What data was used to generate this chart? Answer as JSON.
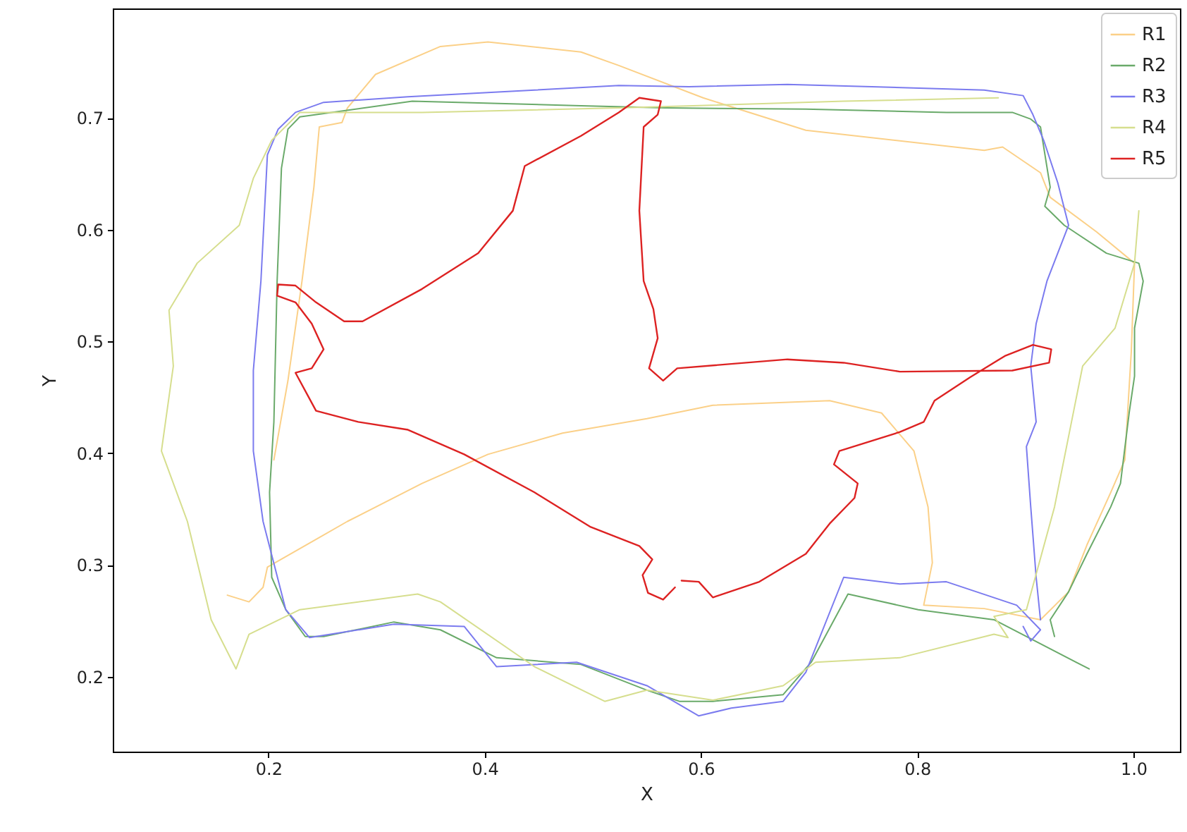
{
  "chart_data": {
    "type": "line",
    "xlabel": "X",
    "ylabel": "Y",
    "xlim": [
      0.056,
      1.043
    ],
    "ylim": [
      0.133,
      0.798
    ],
    "xticks": [
      0.2,
      0.4,
      0.6,
      0.8,
      {
        "value": 1.0,
        "label": "1.0"
      }
    ],
    "yticks": [
      0.2,
      0.3,
      0.4,
      0.5,
      0.6,
      0.7
    ],
    "legend": "top right",
    "line_style": "solid",
    "series": [
      {
        "name": "R1",
        "color": "#fbd088",
        "x": [
          0.162,
          0.182,
          0.195,
          0.199,
          0.273,
          0.342,
          0.403,
          0.472,
          0.55,
          0.611,
          0.719,
          0.767,
          0.797,
          0.81,
          0.814,
          0.806,
          0.862,
          0.914,
          0.94,
          0.957,
          0.979,
          0.992,
          0.998,
          1.001,
          0.966,
          0.923,
          0.914,
          0.879,
          0.862,
          0.697,
          0.602,
          0.524,
          0.489,
          0.403,
          0.359,
          0.299,
          0.273,
          0.268,
          0.247,
          0.242,
          0.231,
          0.218,
          0.205
        ],
        "values": [
          0.273,
          0.267,
          0.28,
          0.298,
          0.339,
          0.373,
          0.399,
          0.418,
          0.431,
          0.443,
          0.447,
          0.436,
          0.402,
          0.352,
          0.302,
          0.264,
          0.261,
          0.251,
          0.276,
          0.318,
          0.365,
          0.394,
          0.491,
          0.57,
          0.598,
          0.629,
          0.651,
          0.674,
          0.671,
          0.689,
          0.718,
          0.747,
          0.759,
          0.768,
          0.764,
          0.739,
          0.709,
          0.696,
          0.692,
          0.638,
          0.554,
          0.465,
          0.394
        ]
      },
      {
        "name": "R2",
        "color": "#6aaa6a",
        "x": [
          0.927,
          0.923,
          0.94,
          0.957,
          0.979,
          0.988,
          0.996,
          1.001,
          1.001,
          1.009,
          1.005,
          0.975,
          0.936,
          0.918,
          0.923,
          0.914,
          0.905,
          0.888,
          0.827,
          0.697,
          0.567,
          0.489,
          0.333,
          0.229,
          0.218,
          0.212,
          0.208,
          0.205,
          0.201,
          0.203,
          0.216,
          0.234,
          0.251,
          0.316,
          0.359,
          0.411,
          0.489,
          0.55,
          0.58,
          0.611,
          0.676,
          0.702,
          0.736,
          0.801,
          0.871,
          0.959
        ],
        "values": [
          0.236,
          0.251,
          0.276,
          0.31,
          0.352,
          0.373,
          0.436,
          0.469,
          0.512,
          0.554,
          0.57,
          0.579,
          0.604,
          0.621,
          0.638,
          0.692,
          0.699,
          0.705,
          0.705,
          0.708,
          0.709,
          0.711,
          0.715,
          0.701,
          0.69,
          0.655,
          0.554,
          0.428,
          0.365,
          0.289,
          0.26,
          0.236,
          0.236,
          0.249,
          0.242,
          0.217,
          0.211,
          0.188,
          0.178,
          0.178,
          0.184,
          0.213,
          0.274,
          0.26,
          0.251,
          0.207
        ]
      },
      {
        "name": "R3",
        "color": "#7b7bef",
        "x": [
          0.914,
          0.91,
          0.905,
          0.901,
          0.91,
          0.905,
          0.91,
          0.92,
          0.94,
          0.93,
          0.917,
          0.907,
          0.898,
          0.862,
          0.758,
          0.68,
          0.589,
          0.524,
          0.446,
          0.329,
          0.251,
          0.225,
          0.209,
          0.199,
          0.193,
          0.186,
          0.186,
          0.195,
          0.216,
          0.238,
          0.316,
          0.381,
          0.411,
          0.485,
          0.55,
          0.598,
          0.628,
          0.676,
          0.697,
          0.732,
          0.784,
          0.827,
          0.892,
          0.914,
          0.905,
          0.898
        ],
        "values": [
          0.251,
          0.289,
          0.352,
          0.406,
          0.428,
          0.478,
          0.516,
          0.554,
          0.604,
          0.642,
          0.68,
          0.703,
          0.72,
          0.725,
          0.728,
          0.73,
          0.728,
          0.729,
          0.725,
          0.719,
          0.714,
          0.705,
          0.69,
          0.667,
          0.554,
          0.474,
          0.402,
          0.339,
          0.26,
          0.235,
          0.247,
          0.245,
          0.209,
          0.213,
          0.192,
          0.165,
          0.172,
          0.178,
          0.204,
          0.289,
          0.283,
          0.285,
          0.264,
          0.242,
          0.232,
          0.245
        ]
      },
      {
        "name": "R4",
        "color": "#d6de8e",
        "x": [
          0.875,
          0.732,
          0.524,
          0.342,
          0.229,
          0.203,
          0.186,
          0.173,
          0.134,
          0.108,
          0.112,
          0.101,
          0.125,
          0.147,
          0.17,
          0.182,
          0.229,
          0.338,
          0.359,
          0.446,
          0.511,
          0.55,
          0.611,
          0.676,
          0.706,
          0.784,
          0.871,
          0.884,
          0.871,
          0.901,
          0.927,
          0.953,
          0.983,
          1.001,
          1.005
        ],
        "values": [
          0.718,
          0.715,
          0.709,
          0.705,
          0.705,
          0.68,
          0.646,
          0.604,
          0.57,
          0.528,
          0.478,
          0.402,
          0.339,
          0.251,
          0.207,
          0.238,
          0.26,
          0.274,
          0.267,
          0.209,
          0.178,
          0.188,
          0.179,
          0.192,
          0.213,
          0.217,
          0.238,
          0.235,
          0.254,
          0.26,
          0.352,
          0.478,
          0.512,
          0.57,
          0.617
        ]
      },
      {
        "name": "R5",
        "color": "#dd2222",
        "x": [
          0.576,
          0.565,
          0.551,
          0.546,
          0.555,
          0.543,
          0.498,
          0.446,
          0.381,
          0.329,
          0.283,
          0.244,
          0.225,
          0.24,
          0.251,
          0.24,
          0.225,
          0.208,
          0.209,
          0.225,
          0.244,
          0.27,
          0.287,
          0.342,
          0.394,
          0.426,
          0.437,
          0.489,
          0.524,
          0.543,
          0.563,
          0.56,
          0.547,
          0.543,
          0.547,
          0.556,
          0.56,
          0.552,
          0.565,
          0.578,
          0.68,
          0.732,
          0.784,
          0.888,
          0.922,
          0.924,
          0.907,
          0.881,
          0.849,
          0.816,
          0.806,
          0.784,
          0.728,
          0.723,
          0.745,
          0.742,
          0.719,
          0.697,
          0.654,
          0.611,
          0.598,
          0.582
        ],
        "values": [
          0.28,
          0.269,
          0.275,
          0.291,
          0.305,
          0.317,
          0.334,
          0.365,
          0.399,
          0.421,
          0.428,
          0.438,
          0.472,
          0.476,
          0.493,
          0.516,
          0.535,
          0.541,
          0.551,
          0.55,
          0.535,
          0.518,
          0.518,
          0.547,
          0.579,
          0.617,
          0.657,
          0.684,
          0.705,
          0.718,
          0.715,
          0.703,
          0.692,
          0.617,
          0.554,
          0.529,
          0.503,
          0.476,
          0.465,
          0.476,
          0.484,
          0.481,
          0.473,
          0.474,
          0.481,
          0.493,
          0.497,
          0.487,
          0.468,
          0.447,
          0.428,
          0.419,
          0.402,
          0.39,
          0.373,
          0.36,
          0.337,
          0.31,
          0.285,
          0.271,
          0.285,
          0.286
        ]
      }
    ]
  }
}
